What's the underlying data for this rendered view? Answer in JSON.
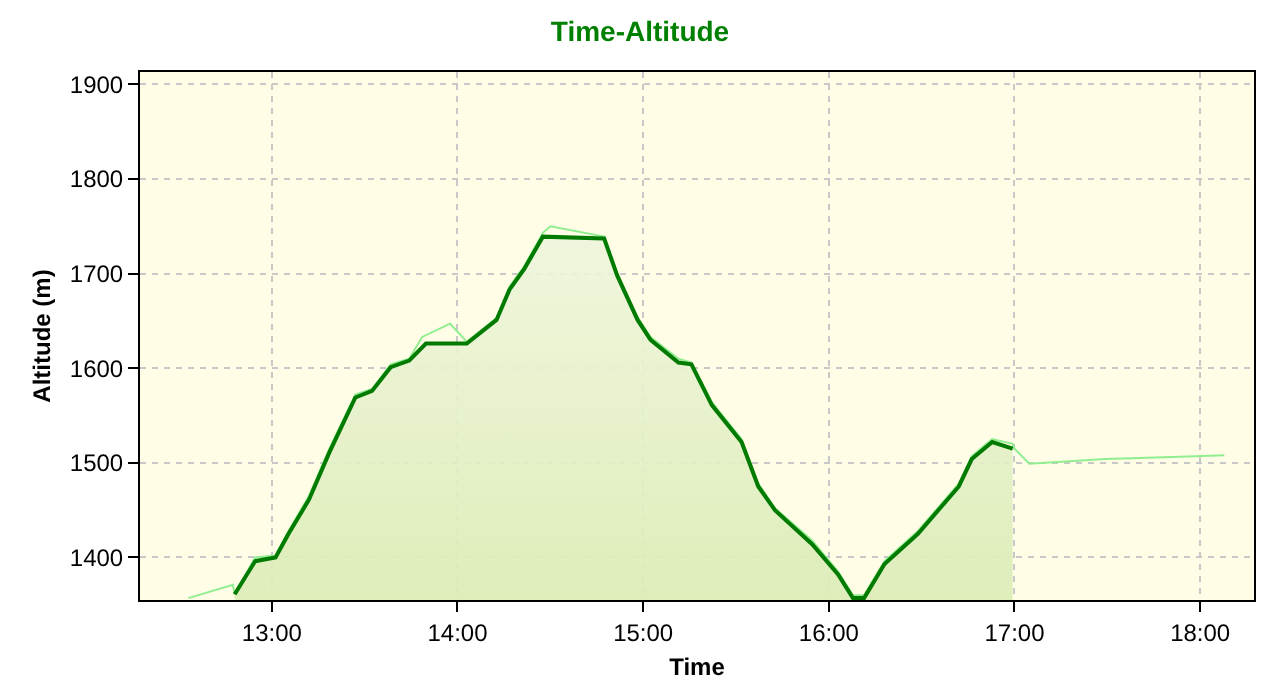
{
  "chart_data": {
    "type": "area",
    "title": "Time-Altitude",
    "xlabel": "Time",
    "ylabel": "Altitude (m)",
    "xlim": [
      12.29,
      18.29
    ],
    "ylim": [
      1355,
      1913
    ],
    "xticks": [
      {
        "value": 13,
        "label": "13:00"
      },
      {
        "value": 14,
        "label": "14:00"
      },
      {
        "value": 15,
        "label": "15:00"
      },
      {
        "value": 16,
        "label": "16:00"
      },
      {
        "value": 17,
        "label": "17:00"
      },
      {
        "value": 18,
        "label": "18:00"
      }
    ],
    "yticks": [
      1400,
      1500,
      1600,
      1700,
      1800,
      1900
    ],
    "grid": true,
    "series": [
      {
        "type": "line",
        "color": "#90ee90",
        "x": [
          12.55,
          12.79,
          12.8,
          12.91,
          13.02,
          13.09,
          13.2,
          13.31,
          13.45,
          13.54,
          13.64,
          13.74,
          13.81,
          13.96,
          14.05,
          14.21,
          14.28,
          14.36,
          14.46,
          14.5,
          14.79,
          14.86,
          14.97,
          15.04,
          15.19,
          15.26,
          15.37,
          15.53,
          15.62,
          15.71,
          15.91,
          16.05,
          16.13,
          16.19,
          16.3,
          16.48,
          16.7,
          16.77,
          16.88,
          16.99,
          17.0,
          17.08,
          17.49,
          17.85,
          18.13
        ],
        "values": [
          1357,
          1371,
          1361,
          1400,
          1402,
          1428,
          1465,
          1515,
          1572,
          1578,
          1604,
          1610,
          1633,
          1647,
          1628,
          1653,
          1686,
          1708,
          1743,
          1750,
          1739,
          1700,
          1654,
          1633,
          1610,
          1606,
          1564,
          1525,
          1478,
          1452,
          1418,
          1385,
          1360,
          1360,
          1396,
          1428,
          1478,
          1507,
          1525,
          1520,
          1515,
          1499,
          1504,
          1506,
          1508
        ]
      },
      {
        "color": "#007a00",
        "x": [
          12.8,
          12.91,
          13.02,
          13.09,
          13.2,
          13.31,
          13.45,
          13.54,
          13.64,
          13.74,
          13.83,
          14.05,
          14.21,
          14.28,
          14.36,
          14.46,
          14.79,
          14.86,
          14.97,
          15.04,
          15.19,
          15.26,
          15.37,
          15.53,
          15.62,
          15.71,
          15.91,
          16.05,
          16.13,
          16.19,
          16.3,
          16.48,
          16.7,
          16.77,
          16.88,
          16.99
        ],
        "values": [
          1361,
          1396,
          1400,
          1425,
          1461,
          1511,
          1569,
          1576,
          1601,
          1608,
          1626,
          1626,
          1651,
          1683,
          1705,
          1739,
          1737,
          1698,
          1651,
          1630,
          1606,
          1604,
          1561,
          1522,
          1475,
          1450,
          1414,
          1382,
          1357,
          1357,
          1393,
          1425,
          1475,
          1504,
          1522,
          1515
        ]
      }
    ]
  }
}
